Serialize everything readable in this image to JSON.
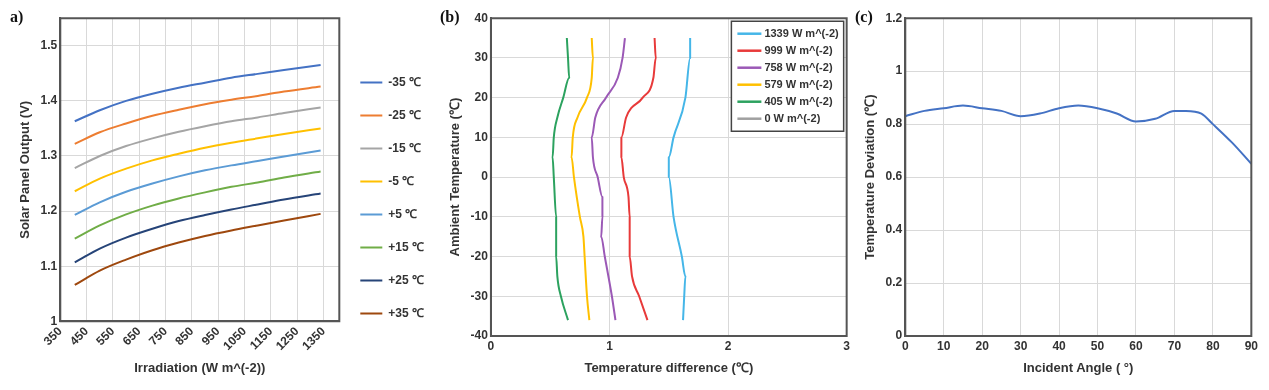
{
  "chart_data": [
    {
      "type": "line",
      "annotations": [
        "a)"
      ],
      "xlabel": "Irradiation (W m^(-2))",
      "ylabel": "Solar Panel Output (V)",
      "xlim": [
        350,
        1410
      ],
      "xticks": [
        350,
        450,
        550,
        650,
        750,
        850,
        950,
        1050,
        1150,
        1250,
        1350
      ],
      "ylim": [
        1,
        1.55
      ],
      "yticks": [
        1,
        1.1,
        1.2,
        1.3,
        1.4,
        1.5
      ],
      "grid": true,
      "legend": "right",
      "marker": "none",
      "x": [
        405,
        500,
        600,
        700,
        800,
        900,
        1000,
        1100,
        1200,
        1339
      ],
      "series": [
        {
          "name": "-35 ℃",
          "color": "#4472c4",
          "values": [
            1.363,
            1.383,
            1.4,
            1.413,
            1.424,
            1.433,
            1.442,
            1.449,
            1.456,
            1.465
          ]
        },
        {
          "name": "-25 ℃",
          "color": "#ed7d31",
          "values": [
            1.322,
            1.343,
            1.359,
            1.373,
            1.384,
            1.394,
            1.402,
            1.409,
            1.417,
            1.426
          ]
        },
        {
          "name": "-15 ℃",
          "color": "#a5a5a5",
          "values": [
            1.278,
            1.3,
            1.318,
            1.332,
            1.344,
            1.354,
            1.363,
            1.37,
            1.378,
            1.388
          ]
        },
        {
          "name": "-5 ℃",
          "color": "#ffc000",
          "values": [
            1.236,
            1.259,
            1.277,
            1.292,
            1.304,
            1.315,
            1.324,
            1.332,
            1.34,
            1.35
          ]
        },
        {
          "name": "+5 ℃",
          "color": "#5b9bd5",
          "values": [
            1.193,
            1.216,
            1.235,
            1.25,
            1.263,
            1.274,
            1.283,
            1.291,
            1.299,
            1.31
          ]
        },
        {
          "name": "+15 ℃",
          "color": "#70ad47",
          "values": [
            1.15,
            1.174,
            1.194,
            1.21,
            1.223,
            1.234,
            1.244,
            1.252,
            1.261,
            1.272
          ]
        },
        {
          "name": "+25 ℃",
          "color": "#264478",
          "values": [
            1.107,
            1.132,
            1.152,
            1.168,
            1.182,
            1.193,
            1.203,
            1.212,
            1.221,
            1.232
          ]
        },
        {
          "name": "+35 ℃",
          "color": "#9e480e",
          "values": [
            1.066,
            1.092,
            1.112,
            1.129,
            1.143,
            1.155,
            1.165,
            1.174,
            1.183,
            1.195
          ]
        }
      ]
    },
    {
      "type": "line",
      "annotations": [
        "(b)"
      ],
      "xlabel": "Temperature difference (℃)",
      "ylabel": "Ambient Temperature (℃)",
      "xlim": [
        0,
        3
      ],
      "xticks": [
        0,
        1,
        2,
        3
      ],
      "ylim": [
        -40,
        40
      ],
      "yticks": [
        -40,
        -30,
        -20,
        -10,
        0,
        10,
        20,
        30,
        40
      ],
      "grid": true,
      "legend": "top right",
      "marker": "none",
      "series": [
        {
          "name": "1339 W m^(-2)",
          "color": "#45b6e8",
          "x": [
            1.68,
            1.68,
            1.64,
            1.54,
            1.5,
            1.5,
            1.54,
            1.61,
            1.64,
            1.63,
            1.62
          ],
          "values": [
            35,
            30,
            20,
            10,
            5,
            0,
            -10,
            -20,
            -25,
            -30,
            -36
          ]
        },
        {
          "name": "999 W m^(-2)",
          "color": "#e83a3a",
          "x": [
            1.38,
            1.39,
            1.37,
            1.28,
            1.14,
            1.1,
            1.1,
            1.12,
            1.16,
            1.17,
            1.17,
            1.19,
            1.25,
            1.32
          ],
          "values": [
            35,
            30,
            25,
            20,
            15,
            10,
            5,
            0,
            -5,
            -10,
            -20,
            -25,
            -30,
            -36
          ]
        },
        {
          "name": "758 W m^(-2)",
          "color": "#9b59b6",
          "x": [
            1.13,
            1.11,
            1.07,
            0.97,
            0.88,
            0.85,
            0.86,
            0.9,
            0.94,
            0.94,
            0.93,
            0.96,
            1.02,
            1.05
          ],
          "values": [
            35,
            30,
            25,
            20,
            15,
            10,
            5,
            0,
            -5,
            -10,
            -15,
            -20,
            -30,
            -36
          ]
        },
        {
          "name": "579 W m^(-2)",
          "color": "#ffc000",
          "x": [
            0.85,
            0.86,
            0.85,
            0.81,
            0.73,
            0.69,
            0.68,
            0.7,
            0.75,
            0.78,
            0.79,
            0.81,
            0.83
          ],
          "values": [
            35,
            30,
            25,
            20,
            15,
            10,
            5,
            0,
            -10,
            -15,
            -20,
            -30,
            -36
          ]
        },
        {
          "name": "405 W m^(-2)",
          "color": "#2ca25f",
          "x": [
            0.64,
            0.65,
            0.66,
            0.61,
            0.56,
            0.53,
            0.52,
            0.53,
            0.55,
            0.55,
            0.56,
            0.59,
            0.65
          ],
          "values": [
            35,
            30,
            25,
            20,
            15,
            10,
            5,
            0,
            -10,
            -20,
            -25,
            -30,
            -36
          ]
        },
        {
          "name": "0 W m^(-2)",
          "color": "#a0a0a0"
        }
      ]
    },
    {
      "type": "line",
      "annotations": [
        "(c)"
      ],
      "xlabel": "Incident Angle ( °)",
      "ylabel": "Temperature Deviation (℃)",
      "xlim": [
        0,
        90
      ],
      "xticks": [
        0,
        10,
        20,
        30,
        40,
        50,
        60,
        70,
        80,
        90
      ],
      "ylim": [
        0,
        1.2
      ],
      "yticks": [
        0,
        0.2,
        0.4,
        0.6,
        0.8,
        1,
        1.2
      ],
      "grid": true,
      "marker": "none",
      "x": [
        0,
        5,
        10,
        15,
        20,
        25,
        30,
        35,
        40,
        45,
        50,
        55,
        60,
        65,
        70,
        73,
        77,
        80,
        85,
        90
      ],
      "series": [
        {
          "color": "#4472c4",
          "values": [
            0.83,
            0.85,
            0.86,
            0.87,
            0.86,
            0.85,
            0.83,
            0.84,
            0.86,
            0.87,
            0.86,
            0.84,
            0.81,
            0.82,
            0.85,
            0.85,
            0.84,
            0.8,
            0.73,
            0.65
          ]
        }
      ]
    }
  ]
}
